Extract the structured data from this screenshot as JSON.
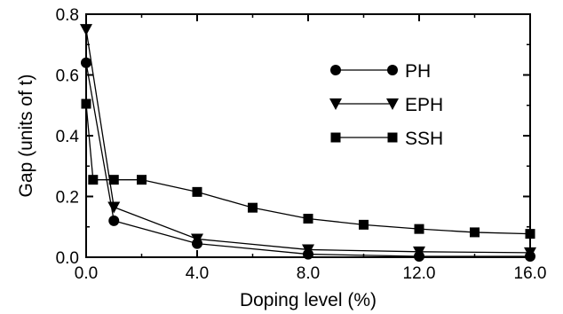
{
  "chart_data": {
    "type": "line",
    "title": "",
    "xlabel": "Doping level (%)",
    "ylabel": "Gap (units of t)",
    "xlim": [
      0,
      16
    ],
    "ylim": [
      0,
      0.8
    ],
    "xticks": [
      0,
      4,
      8,
      12,
      16
    ],
    "xtick_labels": [
      "0.0",
      "4.0",
      "8.0",
      "12.0",
      "16.0"
    ],
    "yticks": [
      0,
      0.2,
      0.4,
      0.6,
      0.8
    ],
    "ytick_labels": [
      "0.0",
      "0.2",
      "0.4",
      "0.6",
      "0.8"
    ],
    "grid": false,
    "legend_position": "top-right",
    "series": [
      {
        "name": "PH",
        "marker": "circle",
        "x": [
          0,
          1,
          4,
          8,
          12,
          16
        ],
        "y": [
          0.64,
          0.12,
          0.045,
          0.01,
          0.003,
          0.003
        ]
      },
      {
        "name": "EPH",
        "marker": "triangle-down",
        "x": [
          0,
          1,
          4,
          8,
          12,
          16
        ],
        "y": [
          0.75,
          0.165,
          0.06,
          0.025,
          0.018,
          0.015
        ]
      },
      {
        "name": "SSH",
        "marker": "square",
        "x": [
          0,
          0.25,
          1,
          2,
          4,
          6,
          8,
          10,
          12,
          14,
          16
        ],
        "y": [
          0.505,
          0.255,
          0.255,
          0.255,
          0.215,
          0.163,
          0.127,
          0.107,
          0.093,
          0.082,
          0.077
        ]
      }
    ]
  }
}
